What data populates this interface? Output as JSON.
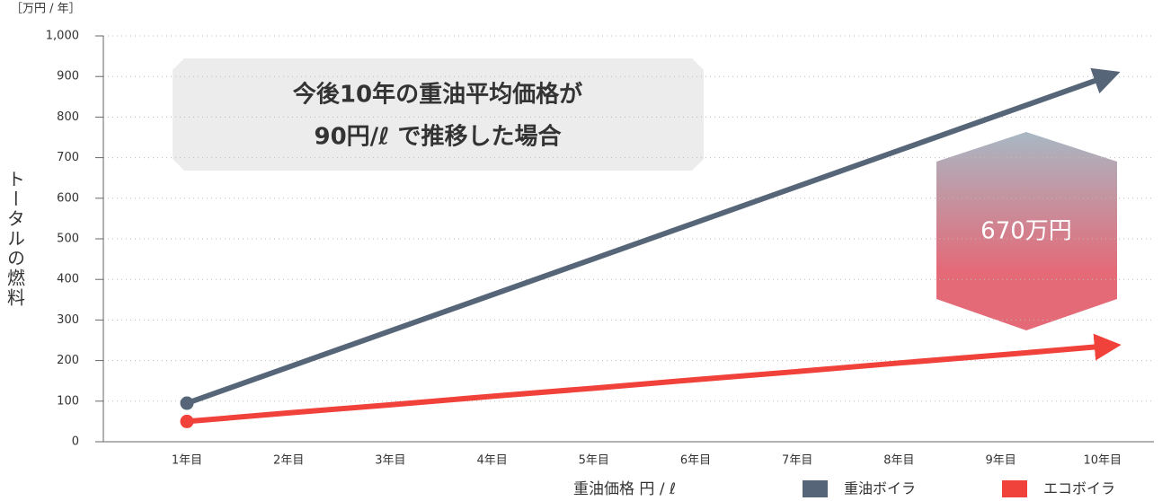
{
  "chart_data": {
    "type": "line",
    "unit_label": "［万円 / 年］",
    "y_axis_label": "トータルの燃料",
    "x_axis_label": "重油価格 円 / ℓ",
    "categories": [
      "1年目",
      "2年目",
      "3年目",
      "4年目",
      "5年目",
      "6年目",
      "7年目",
      "8年目",
      "9年目",
      "10年目"
    ],
    "series": [
      {
        "name": "重油ボイラ",
        "color": "#566678",
        "values": [
          95,
          184,
          273,
          362,
          451,
          540,
          629,
          718,
          807,
          896
        ]
      },
      {
        "name": "エコボイラ",
        "color": "#f0413a",
        "values": [
          50,
          71,
          91,
          112,
          132,
          153,
          173,
          194,
          214,
          235
        ]
      }
    ],
    "ylim": [
      0,
      1000
    ],
    "yticks": [
      0,
      100,
      200,
      300,
      400,
      500,
      600,
      700,
      800,
      900,
      {
        "value": 1000,
        "label": "1,000"
      }
    ],
    "grid": true,
    "annotation": [
      "今後10年の重油平均価格が",
      "90円/ℓ で推移した場合"
    ],
    "badge": "670万円"
  }
}
